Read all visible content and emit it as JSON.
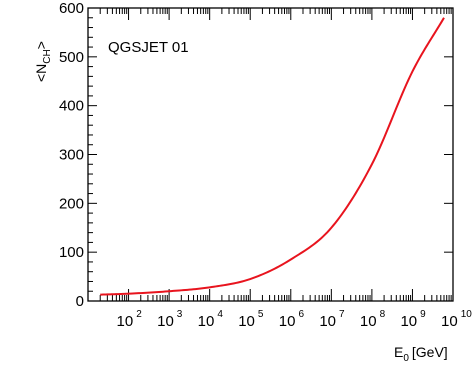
{
  "chart_data": {
    "type": "line",
    "annotation": "QGSJET 01",
    "xlabel_main": "E",
    "xlabel_sub": "0",
    "xlabel_unit": "[GeV]",
    "ylabel_main": "<N",
    "ylabel_sub": "CH",
    "ylabel_close": ">",
    "x_scale": "log",
    "xlim": [
      10,
      10000000000.0
    ],
    "ylim": [
      0,
      600
    ],
    "x_ticks": [
      {
        "base": "10",
        "exp": "2"
      },
      {
        "base": "10",
        "exp": "3"
      },
      {
        "base": "10",
        "exp": "4"
      },
      {
        "base": "10",
        "exp": "5"
      },
      {
        "base": "10",
        "exp": "6"
      },
      {
        "base": "10",
        "exp": "7"
      },
      {
        "base": "10",
        "exp": "8"
      },
      {
        "base": "10",
        "exp": "9"
      },
      {
        "base": "10",
        "exp": "10"
      }
    ],
    "y_ticks": [
      "0",
      "100",
      "200",
      "300",
      "400",
      "500",
      "600"
    ],
    "series": [
      {
        "color": "#e8141e",
        "x": [
          20,
          100,
          1000,
          10000,
          100000,
          1000000,
          10000000,
          100000000,
          1000000000,
          6000000000
        ],
        "y": [
          13,
          15,
          20,
          28,
          45,
          85,
          150,
          280,
          470,
          580
        ]
      }
    ]
  }
}
